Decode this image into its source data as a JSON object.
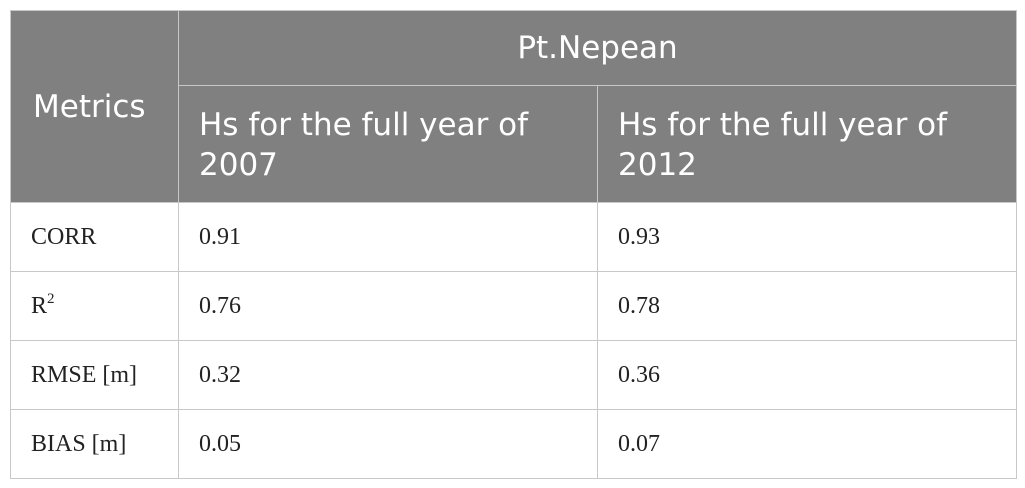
{
  "table": {
    "metrics_header": "Metrics",
    "site_header": "Pt.Nepean",
    "column_headers": [
      "Hs for the full year of 2007",
      "Hs for the full year of 2012"
    ],
    "rows": [
      {
        "label": "CORR",
        "sup": "",
        "v2007": "0.91",
        "v2012": "0.93"
      },
      {
        "label": "R",
        "sup": "2",
        "v2007": "0.76",
        "v2012": "0.78"
      },
      {
        "label": "RMSE [m]",
        "sup": "",
        "v2007": "0.32",
        "v2012": "0.36"
      },
      {
        "label": "BIAS [m]",
        "sup": "",
        "v2007": "0.05",
        "v2012": "0.07"
      }
    ]
  },
  "colors": {
    "header_bg": "#808080",
    "header_text": "#ffffff",
    "border": "#c8c8c8"
  }
}
